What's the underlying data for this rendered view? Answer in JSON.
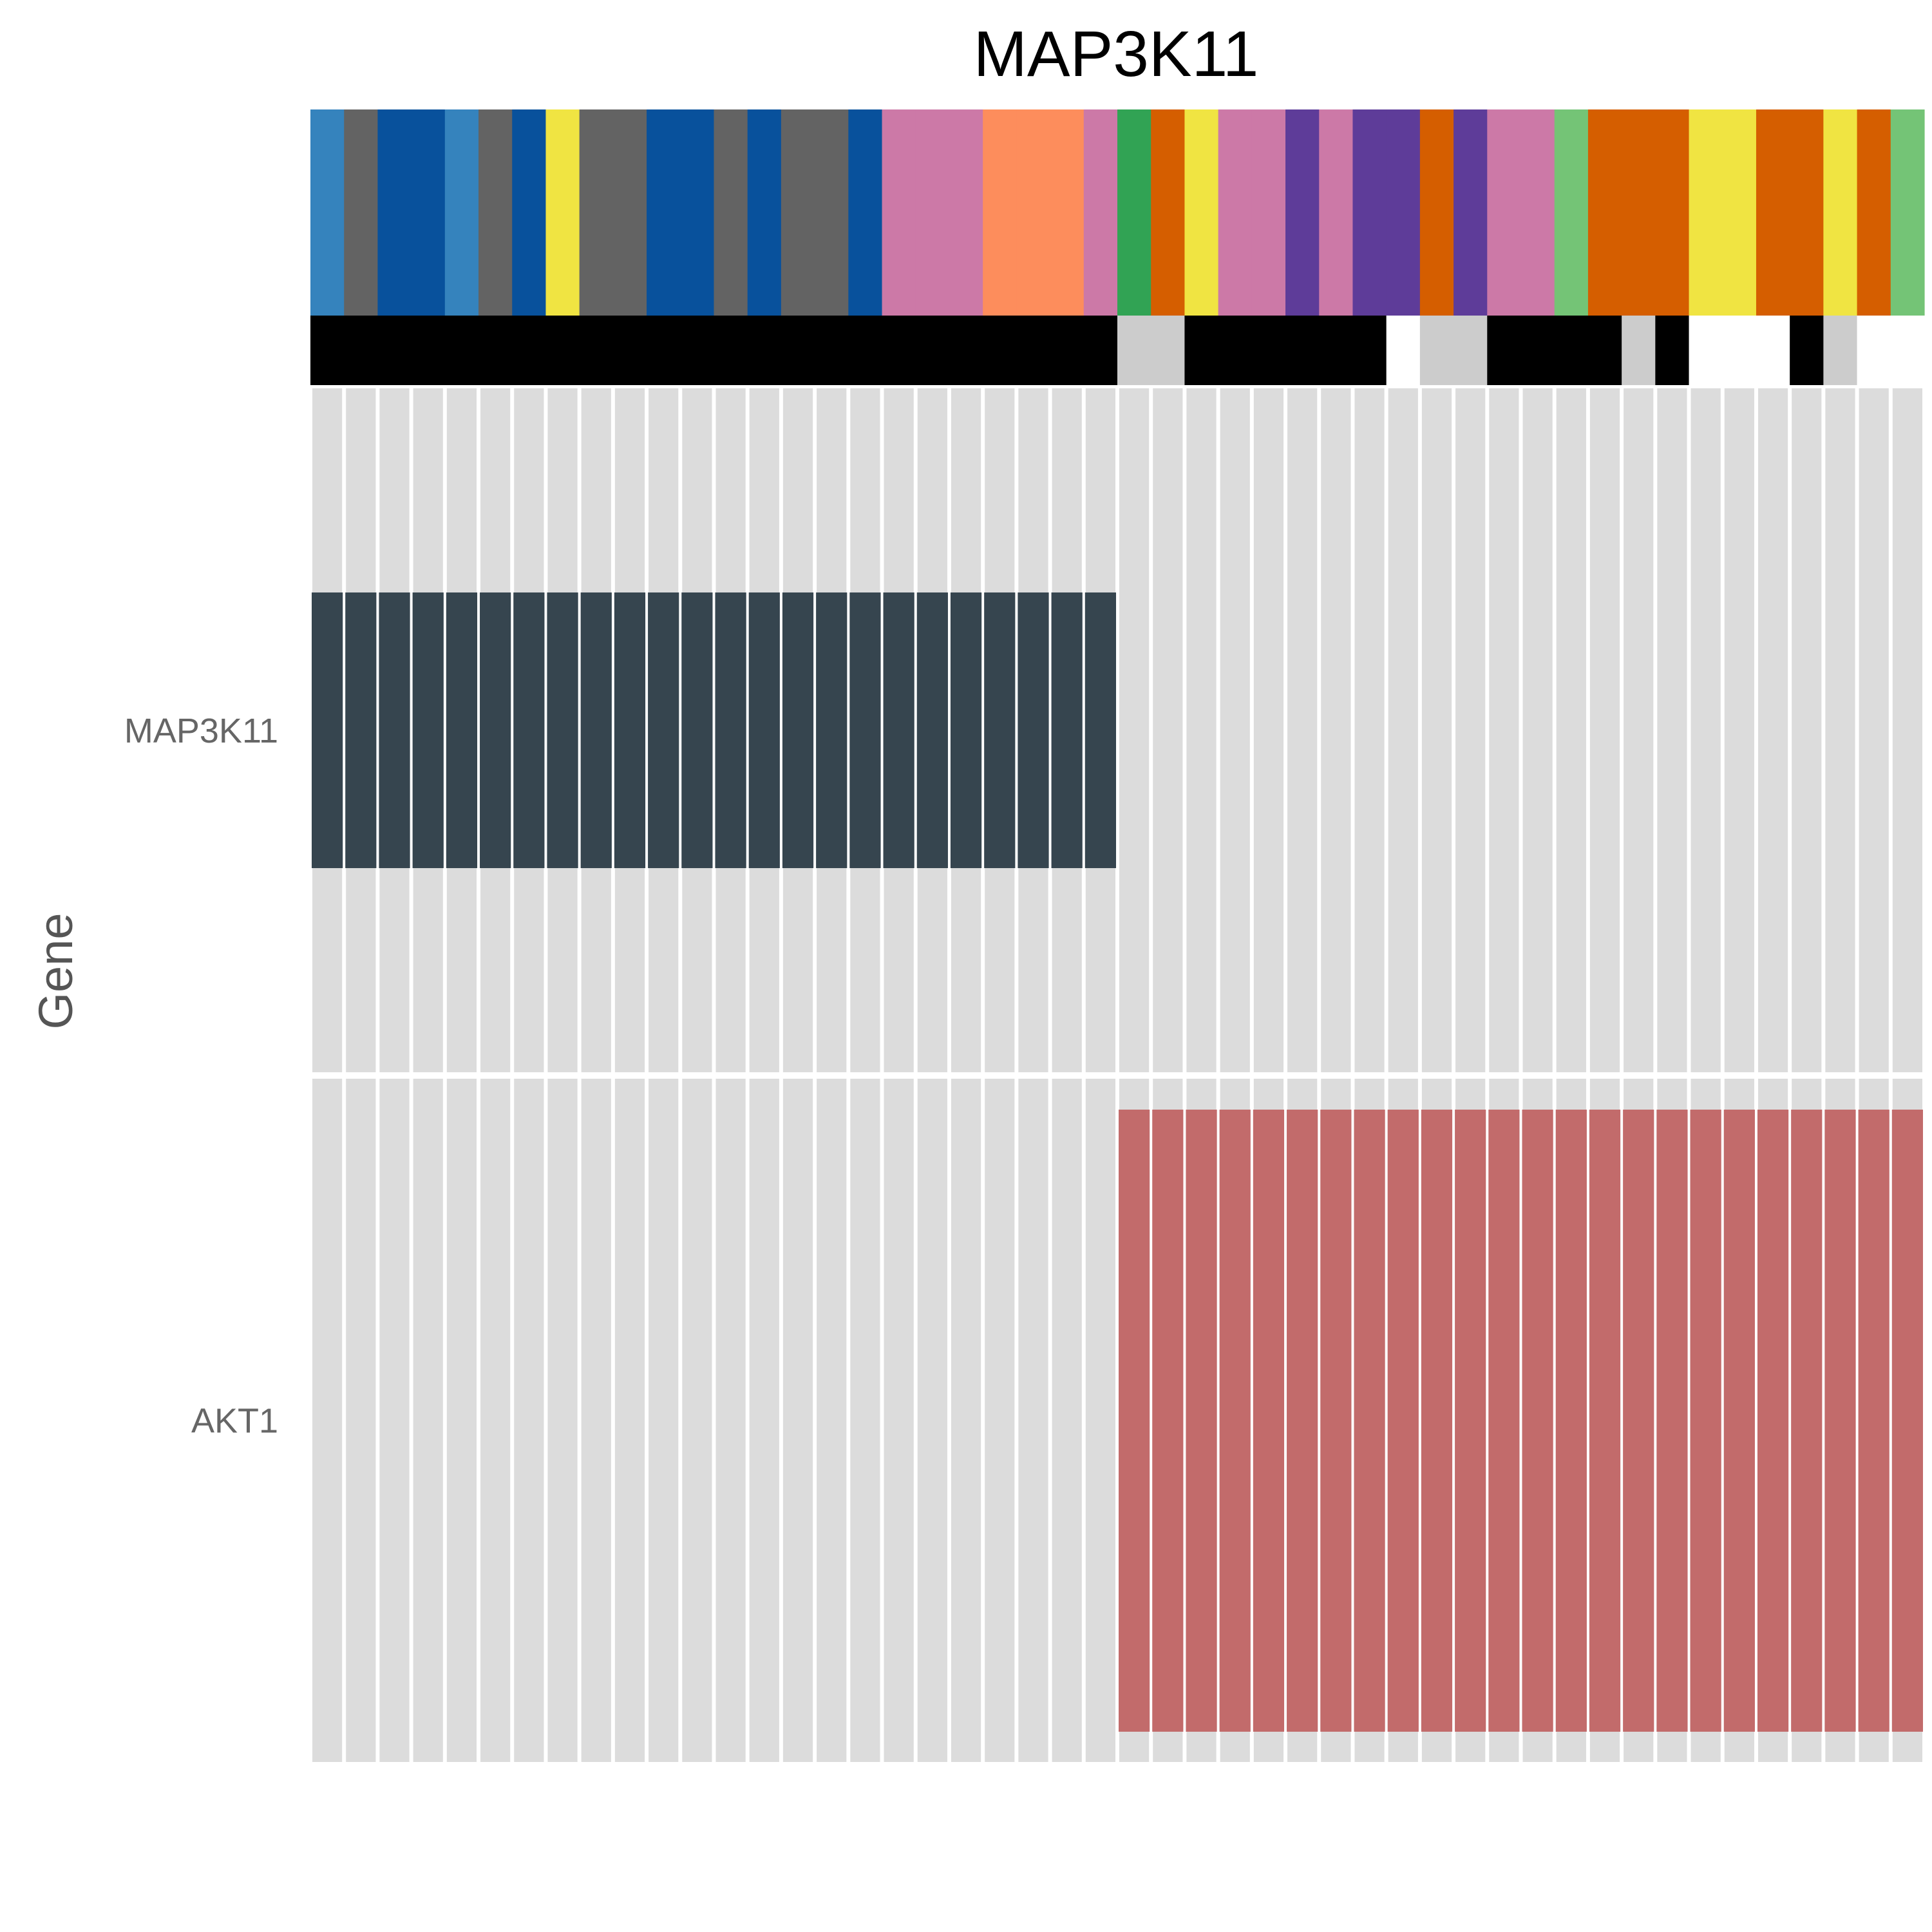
{
  "chart_data": {
    "type": "heatmap",
    "title": "MAP3K11",
    "ylabel": "Gene",
    "genes": [
      "MAP3K11",
      "AKT1"
    ],
    "n_samples": 48,
    "colors": {
      "background_cell": "#dcdcdc",
      "MAP3K11": "#36454f",
      "AKT1": "#c26b6b"
    },
    "alterations": {
      "MAP3K11": [
        1,
        1,
        1,
        1,
        1,
        1,
        1,
        1,
        1,
        1,
        1,
        1,
        1,
        1,
        1,
        1,
        1,
        1,
        1,
        1,
        1,
        1,
        1,
        1,
        0,
        0,
        0,
        0,
        0,
        0,
        0,
        0,
        0,
        0,
        0,
        0,
        0,
        0,
        0,
        0,
        0,
        0,
        0,
        0,
        0,
        0,
        0,
        0
      ],
      "AKT1": [
        0,
        0,
        0,
        0,
        0,
        0,
        0,
        0,
        0,
        0,
        0,
        0,
        0,
        0,
        0,
        0,
        0,
        0,
        0,
        0,
        0,
        0,
        0,
        0,
        1,
        1,
        1,
        1,
        1,
        1,
        1,
        1,
        1,
        1,
        1,
        1,
        1,
        1,
        1,
        1,
        1,
        1,
        1,
        1,
        1,
        1,
        1,
        1
      ]
    },
    "annotation_tracks": [
      {
        "name": "track1",
        "values": [
          "#3583bd",
          "#636363",
          "#08519c",
          "#08519c",
          "#3583bd",
          "#636363",
          "#08519c",
          "#f0e442",
          "#636363",
          "#636363",
          "#08519c",
          "#08519c",
          "#636363",
          "#08519c",
          "#636363",
          "#636363",
          "#08519c",
          "#cc79a7",
          "#cc79a7",
          "#cc79a7",
          "#fd8d5c",
          "#fd8d5c",
          "#fd8d5c",
          "#cc79a7",
          "#31a354",
          "#d55e00",
          "#f0e442",
          "#cc79a7",
          "#cc79a7",
          "#5e3c99",
          "#cc79a7",
          "#5e3c99",
          "#5e3c99",
          "#d55e00",
          "#5e3c99",
          "#cc79a7",
          "#cc79a7",
          "#74c476",
          "#d55e00",
          "#d55e00",
          "#d55e00",
          "#f0e442",
          "#f0e442",
          "#d55e00",
          "#d55e00",
          "#f0e442",
          "#d55e00",
          "#74c476"
        ]
      },
      {
        "name": "track2",
        "values": [
          "#000000",
          "#000000",
          "#000000",
          "#000000",
          "#000000",
          "#000000",
          "#000000",
          "#000000",
          "#000000",
          "#000000",
          "#000000",
          "#000000",
          "#000000",
          "#000000",
          "#000000",
          "#000000",
          "#000000",
          "#000000",
          "#000000",
          "#000000",
          "#000000",
          "#000000",
          "#000000",
          "#000000",
          "#cccccc",
          "#cccccc",
          "#000000",
          "#000000",
          "#000000",
          "#000000",
          "#000000",
          "#000000",
          "#ffffff",
          "#cccccc",
          "#cccccc",
          "#000000",
          "#000000",
          "#000000",
          "#000000",
          "#cccccc",
          "#000000",
          "#ffffff",
          "#ffffff",
          "#ffffff",
          "#000000",
          "#cccccc",
          "#ffffff",
          "#ffffff"
        ]
      }
    ]
  }
}
